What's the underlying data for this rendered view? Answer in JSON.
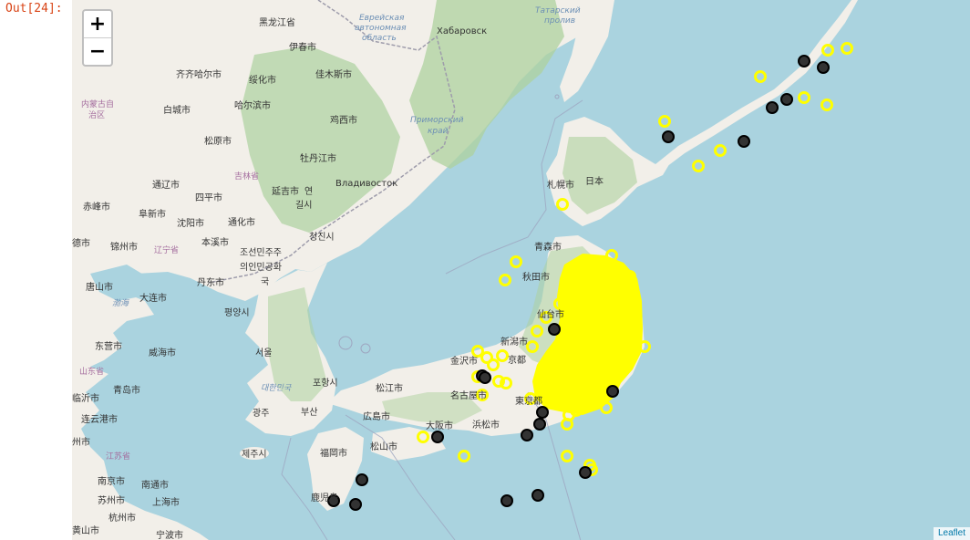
{
  "prompt": "Out[24]:",
  "zoom": {
    "in_label": "+",
    "out_label": "−"
  },
  "attribution": "Leaflet",
  "labels": {
    "heilongjiang": "黑龙江省",
    "eao1": "Еврейская",
    "eao2": "автономная",
    "eao3": "область",
    "khabarovsk": "Хабаровск",
    "tatar1": "Татарский",
    "tatar2": "пролив",
    "yichun": "伊春市",
    "qiqihar": "齐齐哈尔市",
    "suihua": "绥化市",
    "jiamusi": "佳木斯市",
    "nei1": "内蒙古自",
    "nei2": "治区",
    "baicheng": "白城市",
    "harbin": "哈尔滨市",
    "jixi": "鸡西市",
    "primorsky1": "Приморский",
    "primorsky2": "край",
    "songyuan": "松原市",
    "jilin_prov": "吉林省",
    "mudanjiang": "牡丹江市",
    "tongliao": "通辽市",
    "siping": "四平市",
    "yanji1": "延吉市",
    "yanji2": "연",
    "yanji3": "길시",
    "vladivostok": "Владивосток",
    "chifeng": "赤峰市",
    "fuxin": "阜新市",
    "shenyang": "沈阳市",
    "tonghua": "通化市",
    "benxi": "本溪市",
    "chongjin": "청진시",
    "chengde": "德市",
    "jinzhou": "锦州市",
    "liaoning": "辽宁省",
    "dprk1": "조선민주주",
    "dprk2": "의인민공화",
    "dprk3": "국",
    "tangshan": "唐山市",
    "dalian": "大连市",
    "dandong": "丹东市",
    "bohai": "渤海",
    "pyongyang": "평양시",
    "dongying": "东营市",
    "weihai": "威海市",
    "seoul": "서울",
    "shandong": "山东省",
    "linyi": "临沂市",
    "qingdao": "青岛市",
    "rok": "대한민국",
    "pohang": "포항시",
    "lianyungang": "连云港市",
    "gwangju": "광주",
    "busan": "부산",
    "zhou": "州市",
    "jiangsu": "江苏省",
    "jeju": "제주시",
    "nanjing": "南京市",
    "nantong": "南通市",
    "suzhou": "苏州市",
    "shanghai": "上海市",
    "hangzhou": "杭州市",
    "huangshan": "黄山市",
    "ningbo": "宁波市",
    "sapporo": "札幌市",
    "japan": "日本",
    "aomori": "青森市",
    "akita": "秋田市",
    "sendai": "仙台市",
    "niigata": "新潟市",
    "kanazawa": "金沢市",
    "kyoto": "京都",
    "nagoya": "名古屋市",
    "tokyo": "東京都",
    "matsue": "松江市",
    "hiroshima": "広島市",
    "osaka": "大阪市",
    "hamamatsu": "浜松市",
    "matsuyama": "松山市",
    "fukuoka": "福岡市",
    "kagoshima": "鹿児島"
  },
  "colors": {
    "ocean": "#aad3df",
    "land": "#f2efe9",
    "forest": "#add19e",
    "yellow_marker": "#ffff00",
    "black_marker": "#333333",
    "boundary": "#9e9cab"
  },
  "markers": {
    "black_count": 22,
    "yellow_style": "ring",
    "black_style": "filled"
  }
}
